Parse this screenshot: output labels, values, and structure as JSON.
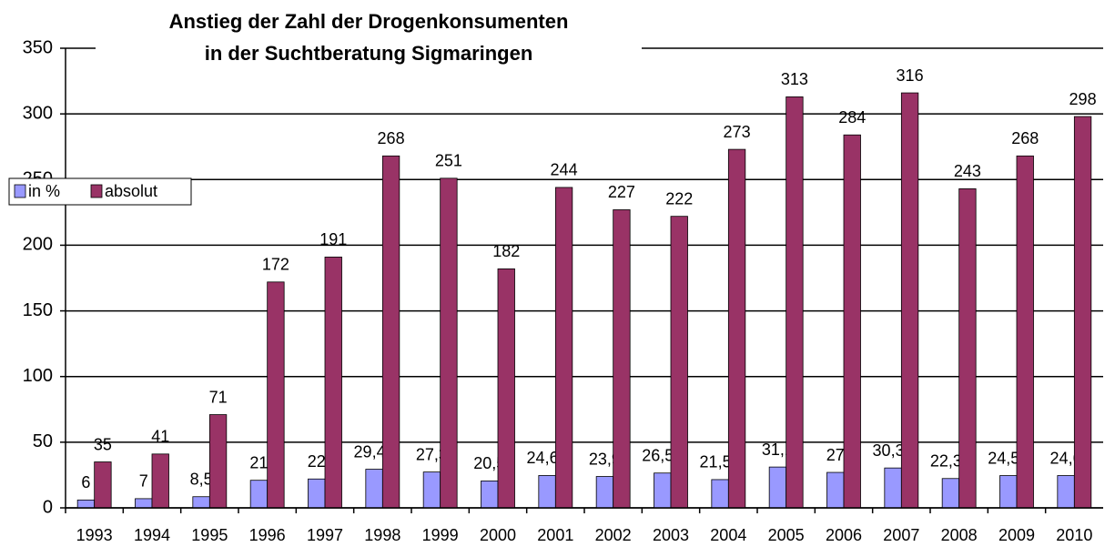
{
  "chart_data": {
    "type": "bar",
    "title": [
      "Anstieg der Zahl der Drogenkonsumenten",
      "in der Suchtberatung Sigmaringen"
    ],
    "categories": [
      "1993",
      "1994",
      "1995",
      "1996",
      "1997",
      "1998",
      "1999",
      "2000",
      "2001",
      "2002",
      "2003",
      "2004",
      "2005",
      "2006",
      "2007",
      "2008",
      "2009",
      "2010"
    ],
    "series": [
      {
        "name": "in %",
        "color": "#9999ff",
        "values": [
          6,
          7,
          8.5,
          21,
          22,
          29.42,
          27.3,
          20.5,
          24.64,
          23.9,
          26.52,
          21.52,
          31.1,
          27,
          30.38,
          22.34,
          24.58,
          24.6
        ],
        "value_labels": [
          "6",
          "7",
          "8,5",
          "21",
          "22",
          "29,42",
          "27,3",
          "20,5",
          "24,64",
          "23,9",
          "26,52",
          "21,52",
          "31,1",
          "27",
          "30,38",
          "22,34",
          "24,58",
          "24,6"
        ]
      },
      {
        "name": "absolut",
        "color": "#993366",
        "values": [
          35,
          41,
          71,
          172,
          191,
          268,
          251,
          182,
          244,
          227,
          222,
          273,
          313,
          284,
          316,
          243,
          268,
          298
        ]
      }
    ],
    "ylim": [
      0,
      350
    ],
    "yticks": [
      0,
      50,
      100,
      150,
      200,
      250,
      300,
      350
    ],
    "grid": true,
    "legend": "left"
  }
}
